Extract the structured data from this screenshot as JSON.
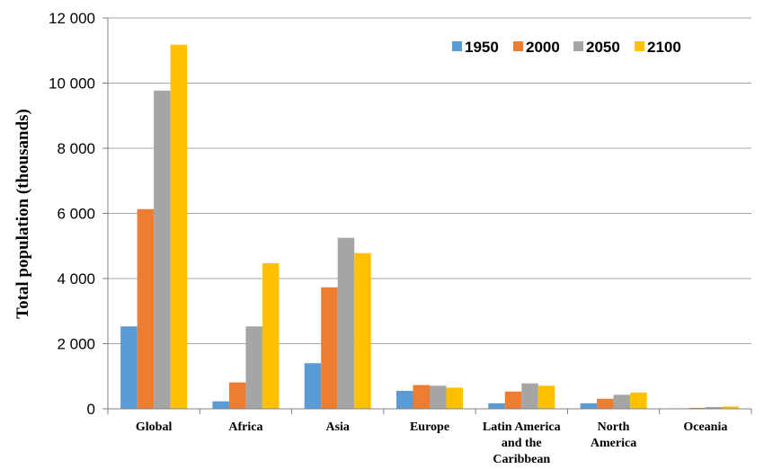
{
  "chart_data": {
    "type": "bar",
    "ylabel": "Total population (thousands)",
    "xlabel": "",
    "ylim": [
      0,
      12000
    ],
    "yticks": [
      0,
      2000,
      4000,
      6000,
      8000,
      10000,
      12000
    ],
    "ytick_labels": [
      "0",
      "2 000",
      "4 000",
      "6 000",
      "8 000",
      "10 000",
      "12 000"
    ],
    "categories": [
      [
        "Global"
      ],
      [
        "Africa"
      ],
      [
        "Asia"
      ],
      [
        "Europe"
      ],
      [
        "Latin America",
        "and the",
        "Caribbean"
      ],
      [
        "North",
        "America"
      ],
      [
        "Oceania"
      ]
    ],
    "series": [
      {
        "name": "1950",
        "color": "#5B9BD5",
        "values": [
          2530,
          230,
          1400,
          550,
          170,
          170,
          15
        ]
      },
      {
        "name": "2000",
        "color": "#ED7D31",
        "values": [
          6130,
          810,
          3730,
          730,
          530,
          310,
          30
        ]
      },
      {
        "name": "2050",
        "color": "#A5A5A5",
        "values": [
          9770,
          2530,
          5250,
          710,
          780,
          430,
          55
        ]
      },
      {
        "name": "2100",
        "color": "#FFC000",
        "values": [
          11180,
          4470,
          4780,
          650,
          710,
          500,
          70
        ]
      }
    ],
    "grid": true,
    "legend_position": "top-right"
  }
}
